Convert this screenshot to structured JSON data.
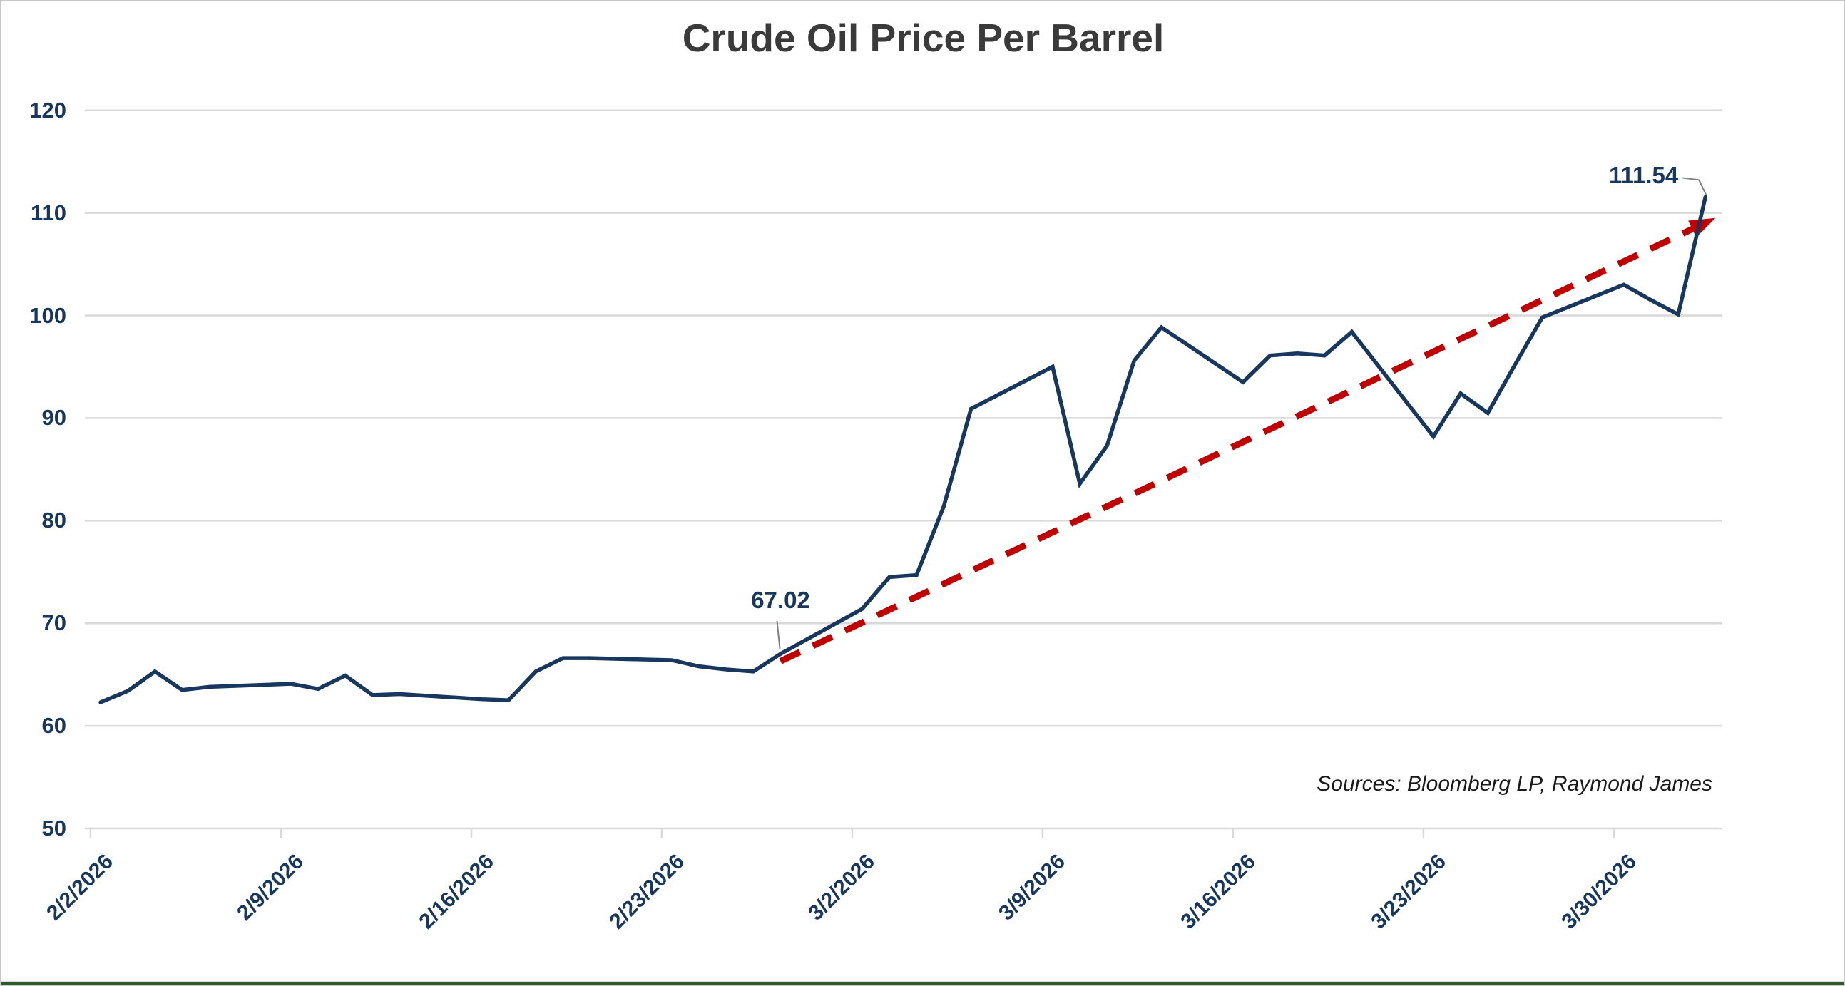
{
  "page": {
    "background": "#ffffff",
    "border_color": "#c9c9c9",
    "bottom_bar_color": "#2e5b2e"
  },
  "chart_data": {
    "type": "line",
    "title": "Crude Oil Price Per Barrel",
    "source_note": "Sources: Bloomberg LP, Raymond James",
    "xlabel": "",
    "ylabel": "",
    "ylim": [
      50,
      120
    ],
    "y_ticks": [
      50,
      60,
      70,
      80,
      90,
      100,
      110,
      120
    ],
    "x_tick_labels": [
      "2/2/2026",
      "2/9/2026",
      "2/16/2026",
      "2/23/2026",
      "3/2/2026",
      "3/9/2026",
      "3/16/2026",
      "3/23/2026",
      "3/30/2026"
    ],
    "grid": true,
    "legend": false,
    "series": [
      {
        "name": "Crude Oil Price Per Barrel",
        "color": "#17375e",
        "dates": [
          "2/2/2026",
          "2/3/2026",
          "2/4/2026",
          "2/5/2026",
          "2/6/2026",
          "2/9/2026",
          "2/10/2026",
          "2/11/2026",
          "2/12/2026",
          "2/13/2026",
          "2/16/2026",
          "2/17/2026",
          "2/18/2026",
          "2/19/2026",
          "2/20/2026",
          "2/23/2026",
          "2/24/2026",
          "2/25/2026",
          "2/26/2026",
          "2/27/2026",
          "3/2/2026",
          "3/3/2026",
          "3/4/2026",
          "3/5/2026",
          "3/6/2026",
          "3/9/2026",
          "3/10/2026",
          "3/11/2026",
          "3/12/2026",
          "3/13/2026",
          "3/16/2026",
          "3/17/2026",
          "3/18/2026",
          "3/19/2026",
          "3/20/2026",
          "3/23/2026",
          "3/24/2026",
          "3/25/2026",
          "3/26/2026",
          "3/27/2026",
          "3/30/2026",
          "3/31/2026",
          "4/1/2026",
          "4/2/2026"
        ],
        "values": [
          62.3,
          63.4,
          65.3,
          63.5,
          63.8,
          64.1,
          63.6,
          64.9,
          63.0,
          63.1,
          62.6,
          62.5,
          65.3,
          66.6,
          66.6,
          66.4,
          65.8,
          65.5,
          65.3,
          67.02,
          71.4,
          74.5,
          74.7,
          81.4,
          90.9,
          95.0,
          83.6,
          87.3,
          95.6,
          98.85,
          93.5,
          96.1,
          96.3,
          96.1,
          98.4,
          88.2,
          92.4,
          90.5,
          95.2,
          99.8,
          103.0,
          101.5,
          100.1,
          111.54
        ]
      }
    ],
    "trendline": {
      "style": "dashed",
      "color": "#c00000",
      "arrow": true,
      "from": {
        "date": "2/27/2026",
        "value": 66.3
      },
      "to": {
        "date": "4/2/2026",
        "value": 109.5
      }
    },
    "annotations": [
      {
        "label": "67.02",
        "date": "2/27/2026",
        "value": 67.02
      },
      {
        "label": "111.54",
        "date": "4/2/2026",
        "value": 111.54
      }
    ],
    "colors": {
      "line": "#17375e",
      "trend": "#c00000",
      "grid": "#d9d9d9",
      "axis_text": "#17375e",
      "title_text": "#3a3a3a",
      "source_text": "#1a1a1a",
      "callout": "#7f7f7f"
    }
  }
}
